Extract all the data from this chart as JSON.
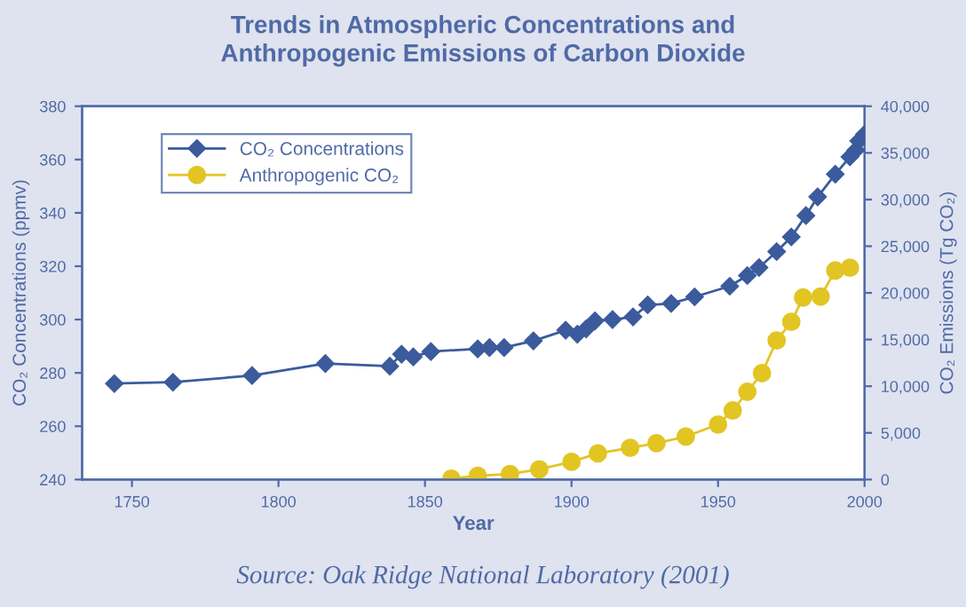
{
  "chart_data": {
    "type": "line",
    "title": "Trends in Atmospheric Concentrations and\nAnthropogenic Emissions of Carbon Dioxide",
    "xlabel": "Year",
    "ylabel": "CO₂ Concentrations (ppmv)",
    "y2label": "CO₂ Emissions (Tg CO₂)",
    "annotations": [
      "Source: Oak Ridge National Laboratory (2001)"
    ],
    "xlim": [
      1733,
      2000
    ],
    "xticks": [
      1750,
      1800,
      1850,
      1900,
      1950,
      2000
    ],
    "ylim": [
      240,
      380
    ],
    "yticks": [
      240,
      260,
      280,
      300,
      320,
      340,
      360,
      380
    ],
    "y2lim": [
      0,
      40000
    ],
    "y2ticks": [
      0,
      {
        "value": 5000,
        "label": "5,000"
      },
      {
        "value": 10000,
        "label": "10,000"
      },
      {
        "value": 15000,
        "label": "15,000"
      },
      {
        "value": 20000,
        "label": "20,000"
      },
      {
        "value": 25000,
        "label": "25,000"
      },
      {
        "value": 30000,
        "label": "30,000"
      },
      {
        "value": 35000,
        "label": "35,000"
      },
      {
        "value": 40000,
        "label": "40,000"
      }
    ],
    "grid": false,
    "legend": "top left",
    "line_style": "solid",
    "series": [
      {
        "name": "CO₂ Concentrations",
        "color": "#3b5b9d",
        "marker": "diamond",
        "x": [
          1744,
          1764,
          1791,
          1816,
          1838,
          1842,
          1846,
          1852,
          1868,
          1872,
          1877,
          1887,
          1898,
          1902,
          1905,
          1908,
          1914,
          1921,
          1926,
          1934,
          1942,
          1954,
          1960,
          1964,
          1970,
          1975,
          1980,
          1984,
          1990,
          1995,
          1997,
          1998,
          2000
        ],
        "values": [
          276,
          276.5,
          279,
          283.5,
          282.5,
          287,
          286,
          288,
          289,
          289.5,
          289.5,
          292,
          296,
          294.5,
          296.5,
          299.5,
          300,
          301,
          305.5,
          306,
          308.5,
          312.5,
          316.5,
          319.5,
          325.5,
          331,
          339,
          346,
          354.5,
          361,
          363.5,
          367,
          369.5
        ]
      },
      {
        "name": "Anthropogenic CO₂",
        "color": "#e2c523",
        "marker": "circle",
        "axis": "y2",
        "x": [
          1859,
          1868,
          1879,
          1889,
          1900,
          1909,
          1920,
          1929,
          1939,
          1950,
          1955,
          1960,
          1965,
          1970,
          1975,
          1979,
          1985,
          1990,
          1995
        ],
        "values": [
          100,
          400,
          600,
          1100,
          1900,
          2800,
          3400,
          3900,
          4600,
          5900,
          7400,
          9400,
          11400,
          14900,
          16900,
          19500,
          19600,
          22400,
          22700
        ]
      }
    ]
  }
}
